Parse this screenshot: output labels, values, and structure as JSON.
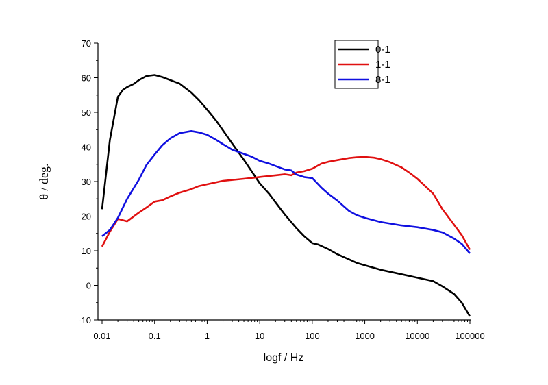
{
  "chart_data": {
    "type": "line",
    "title": "",
    "xlabel": "logf / Hz",
    "ylabel": "θ / deg.",
    "xscale": "log",
    "xlim": [
      0.01,
      100000
    ],
    "ylim": [
      -10,
      70
    ],
    "x_tick_labels": [
      "0.01",
      "0.1",
      "1",
      "10",
      "100",
      "1000",
      "10000",
      "100000"
    ],
    "x_ticks": [
      0.01,
      0.1,
      1,
      10,
      100,
      1000,
      10000,
      100000
    ],
    "y_tick_labels": [
      "-10",
      "0",
      "10",
      "20",
      "30",
      "40",
      "50",
      "60",
      "70"
    ],
    "y_ticks": [
      -10,
      0,
      10,
      20,
      30,
      40,
      50,
      60,
      70
    ],
    "grid": false,
    "legend_position": "top-right",
    "series": [
      {
        "name": "0-1",
        "color": "#000000",
        "x": [
          0.01,
          0.0141,
          0.02,
          0.025,
          0.03,
          0.04,
          0.05,
          0.07,
          0.1,
          0.14,
          0.2,
          0.3,
          0.5,
          0.7,
          1,
          1.5,
          2,
          3,
          5,
          7,
          10,
          15,
          20,
          30,
          50,
          70,
          100,
          130,
          200,
          300,
          500,
          700,
          1000,
          2000,
          5000,
          10000,
          20000,
          30000,
          50000,
          70000,
          100000
        ],
        "y": [
          22,
          42,
          54.5,
          56.5,
          57.3,
          58.2,
          59.3,
          60.5,
          60.8,
          60.2,
          59.3,
          58.3,
          55.7,
          53.5,
          50.8,
          47.5,
          44.8,
          41,
          36.3,
          33,
          29.5,
          26.5,
          24,
          20.5,
          16.5,
          14.2,
          12.2,
          11.8,
          10.5,
          9,
          7.5,
          6.5,
          5.8,
          4.5,
          3.2,
          2.2,
          1.2,
          -0.3,
          -2.5,
          -5,
          -9
        ]
      },
      {
        "name": "1-1",
        "color": "#e01010",
        "x": [
          0.01,
          0.0141,
          0.02,
          0.03,
          0.05,
          0.07,
          0.1,
          0.14,
          0.2,
          0.3,
          0.5,
          0.7,
          1,
          2,
          5,
          10,
          20,
          30,
          40,
          50,
          70,
          100,
          150,
          200,
          300,
          500,
          700,
          1000,
          1500,
          2000,
          3000,
          5000,
          7000,
          10000,
          20000,
          30000,
          50000,
          70000,
          100000
        ],
        "y": [
          11.2,
          15.5,
          19.2,
          18.5,
          21,
          22.5,
          24.2,
          24.6,
          25.7,
          26.8,
          27.8,
          28.7,
          29.2,
          30.2,
          30.8,
          31.3,
          31.8,
          32.1,
          31.8,
          32.6,
          33,
          33.7,
          35.2,
          35.7,
          36.2,
          36.8,
          37,
          37.1,
          36.9,
          36.5,
          35.6,
          34.1,
          32.6,
          30.8,
          26.5,
          22,
          17.5,
          14.5,
          10.3
        ]
      },
      {
        "name": "8-1",
        "color": "#1010e0",
        "x": [
          0.01,
          0.0141,
          0.02,
          0.03,
          0.05,
          0.07,
          0.1,
          0.14,
          0.2,
          0.3,
          0.5,
          0.7,
          1,
          1.5,
          2,
          3,
          5,
          7,
          10,
          15,
          20,
          30,
          40,
          50,
          70,
          100,
          150,
          200,
          300,
          500,
          700,
          1000,
          2000,
          5000,
          10000,
          20000,
          30000,
          50000,
          70000,
          100000
        ],
        "y": [
          14.2,
          16,
          19.5,
          25,
          30.5,
          34.8,
          37.8,
          40.5,
          42.5,
          44,
          44.6,
          44.2,
          43.5,
          42,
          40.8,
          39.2,
          38,
          37.2,
          36,
          35.2,
          34.5,
          33.5,
          33.2,
          32,
          31.3,
          31,
          28.2,
          26.5,
          24.5,
          21.5,
          20.3,
          19.5,
          18.3,
          17.3,
          16.8,
          16,
          15.3,
          13.5,
          12,
          9.2
        ]
      }
    ]
  }
}
